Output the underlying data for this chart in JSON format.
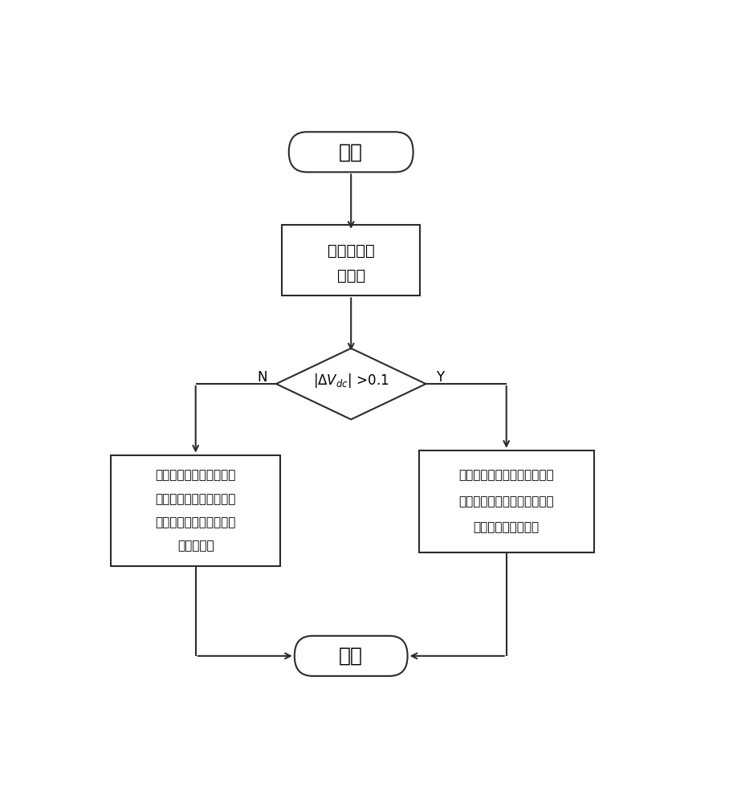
{
  "bg_color": "#ffffff",
  "line_color": "#2b2b2b",
  "text_color": "#000000",
  "start_label": "开始",
  "measure_line1": "测量直流每",
  "measure_line2": "线电压",
  "left_box_line1": "蓄电池平抑光伏输出功率",
  "left_box_line2": "光伏逆变器保证直流每线",
  "left_box_line3": "电压稳定和交流侧单位功",
  "left_box_line4": "率因数运行",
  "right_box_line1": "蓄电池维持直流每线电压稳定",
  "right_box_line2": "光伏逆变器附加有功和无功阱",
  "right_box_line3": "尼控制抑制功率振荡",
  "return_label": "返回",
  "n_label": "N",
  "y_label": "Y"
}
